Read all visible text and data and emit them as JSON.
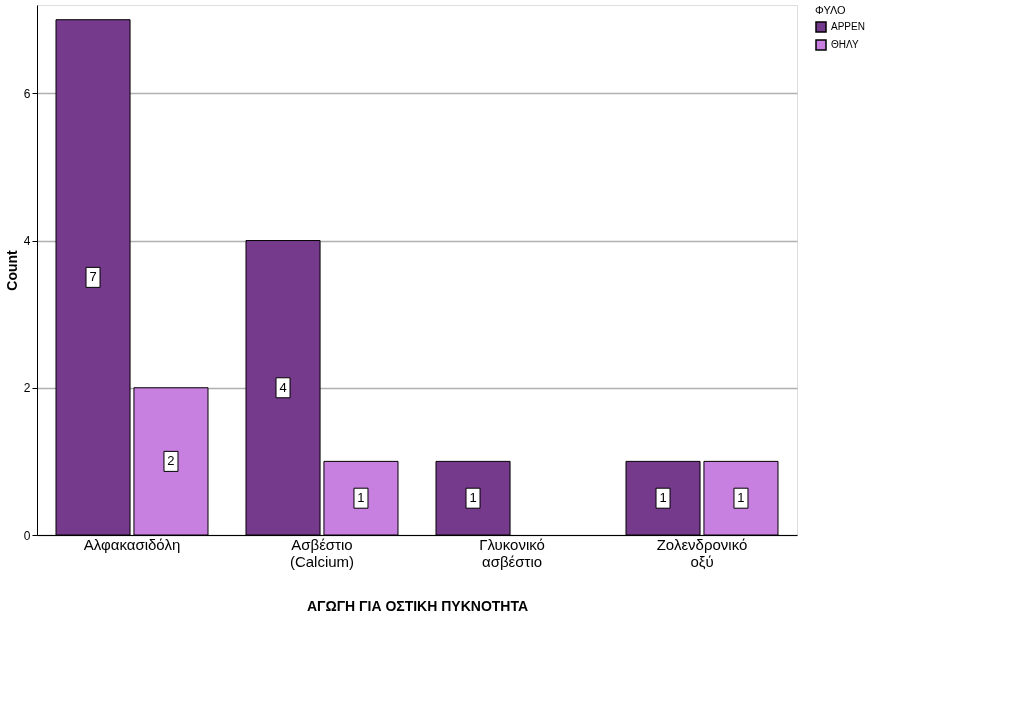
{
  "chart_data": {
    "type": "bar",
    "xlabel": "ΑΓΩΓΗ ΓΙΑ ΟΣΤΙΚΗ ΠΥΚΝΟΤΗΤΑ",
    "ylabel": "Count",
    "legend_title": "ΦΥΛΟ",
    "categories": [
      "Αλφακασιδόλη",
      "Ασβέστιο (Calcium)",
      "Γλυκονικό ασβέστιο",
      "Ζολενδρονικό οξύ"
    ],
    "series": [
      {
        "name": "ΑΡΡΕΝ",
        "color": "#763a8c",
        "values": [
          7,
          4,
          1,
          1
        ]
      },
      {
        "name": "ΘΗΛΥ",
        "color": "#c77fe0",
        "values": [
          2,
          1,
          null,
          1
        ]
      }
    ],
    "ylim": [
      0,
      7.2
    ],
    "yticks": [
      0,
      2,
      4,
      6
    ],
    "grid": "y",
    "legend": "top right",
    "data_labels": true
  }
}
